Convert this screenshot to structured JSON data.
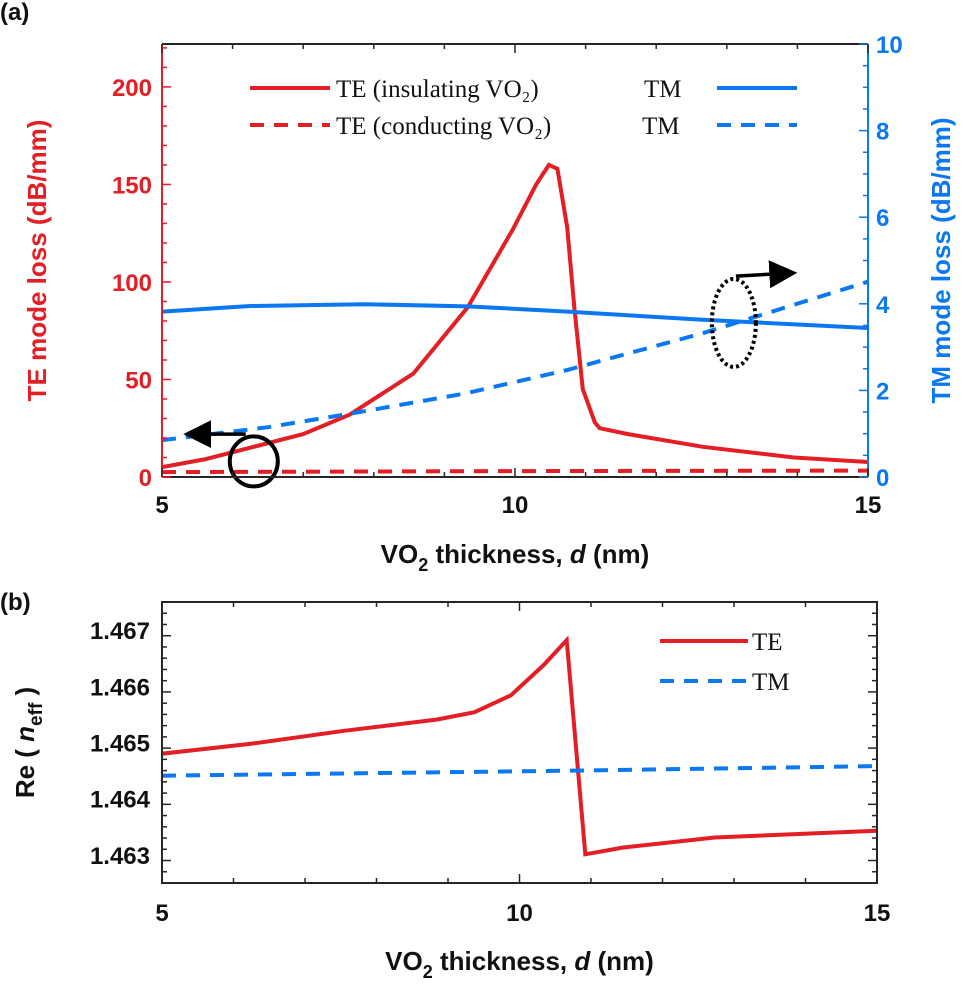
{
  "panel_labels": [
    "(a)",
    "(b)"
  ],
  "colors": {
    "te": "#e31e25",
    "tm": "#0a78f0",
    "axis": "#262626",
    "annotation": "#000000"
  },
  "chart_data": [
    {
      "type": "line",
      "panel": "(a)",
      "xlabel_parts": [
        "VO",
        "2",
        " thickness,  ",
        "d",
        " (nm)"
      ],
      "ylabel_left": "TE mode loss (dB/mm)",
      "ylabel_right": "TM mode loss (dB/mm)",
      "xlim": [
        5,
        15
      ],
      "ylim_left": [
        0,
        222
      ],
      "ylim_right": [
        0,
        10
      ],
      "xticks": [
        5,
        10,
        15
      ],
      "yticks_left": [
        0,
        50,
        100,
        150,
        200
      ],
      "yticks_right": [
        0,
        2,
        4,
        6,
        8,
        10
      ],
      "grid": false,
      "legend_position": "top-center",
      "legend": {
        "row1": {
          "te": "TE (insulating VO₂)",
          "tm": "TM"
        },
        "row2": {
          "te": "TE (conducting VO₂)",
          "tm": "TM"
        }
      },
      "series": [
        {
          "name": "TE (insulating VO2)",
          "axis": "left",
          "style": "solid",
          "color": "te",
          "x": [
            5,
            5.6,
            6.25,
            7.0,
            7.66,
            8.56,
            9.33,
            9.97,
            10.3,
            10.48,
            10.6,
            10.74,
            10.84,
            10.96,
            11.13,
            11.2,
            11.6,
            12.66,
            13.95,
            15
          ],
          "y": [
            5,
            9,
            15,
            22,
            32,
            53,
            87,
            127,
            150,
            160,
            158,
            128,
            87,
            45,
            28,
            25,
            22,
            15.5,
            10,
            7.7
          ]
        },
        {
          "name": "TE (conducting VO2)",
          "axis": "left",
          "style": "dashed",
          "color": "te",
          "x": [
            5,
            10,
            15
          ],
          "y": [
            2.5,
            3,
            3.3
          ]
        },
        {
          "name": "TM (insulating VO2)",
          "axis": "right",
          "style": "solid",
          "color": "tm",
          "x": [
            5,
            6.25,
            7.86,
            9.33,
            10.74,
            12.66,
            15
          ],
          "y": [
            3.82,
            3.95,
            3.99,
            3.94,
            3.82,
            3.63,
            3.44
          ]
        },
        {
          "name": "TM (conducting VO2)",
          "axis": "right",
          "style": "dashed",
          "color": "tm",
          "x": [
            5,
            6.5,
            7.73,
            9.3,
            10.74,
            12.66,
            15
          ],
          "y": [
            0.85,
            1.15,
            1.48,
            1.93,
            2.47,
            3.32,
            4.51
          ]
        }
      ],
      "annotations": [
        {
          "kind": "circle",
          "style": "solid",
          "axis": "left",
          "cx": 6.3,
          "cy": 8,
          "arrow_to_x": 5.4,
          "arrow_y": 22
        },
        {
          "kind": "ellipse",
          "style": "dotted",
          "axis": "left",
          "cx": 13.1,
          "cy": 79,
          "arrow_to_x": 13.9,
          "arrow_y": 103
        }
      ]
    },
    {
      "type": "line",
      "panel": "(b)",
      "xlabel_parts": [
        "VO",
        "2",
        " thickness,  ",
        "d",
        " (nm)"
      ],
      "ylabel_parts": [
        "Re ( ",
        "n",
        "eff",
        " )"
      ],
      "xlim": [
        5,
        15
      ],
      "ylim": [
        1.4625,
        1.4675
      ],
      "xticks": [
        5,
        10,
        15
      ],
      "yticks": [
        1.463,
        1.464,
        1.465,
        1.466,
        1.467
      ],
      "grid": false,
      "legend_position": "top-right",
      "legend": [
        "TE",
        "TM"
      ],
      "series": [
        {
          "name": "TE",
          "style": "solid",
          "color": "te",
          "x": [
            5,
            6.26,
            7.56,
            8.85,
            9.37,
            9.88,
            10.34,
            10.66,
            10.92,
            11.44,
            12.73,
            15
          ],
          "y": [
            1.4648,
            1.46498,
            1.46521,
            1.46541,
            1.46554,
            1.46584,
            1.46638,
            1.46682,
            1.46301,
            1.46313,
            1.46331,
            1.46343
          ]
        },
        {
          "name": "TM",
          "style": "dashed",
          "color": "tm",
          "x": [
            5,
            10.8,
            15
          ],
          "y": [
            1.46441,
            1.4645,
            1.46458
          ]
        }
      ]
    }
  ]
}
